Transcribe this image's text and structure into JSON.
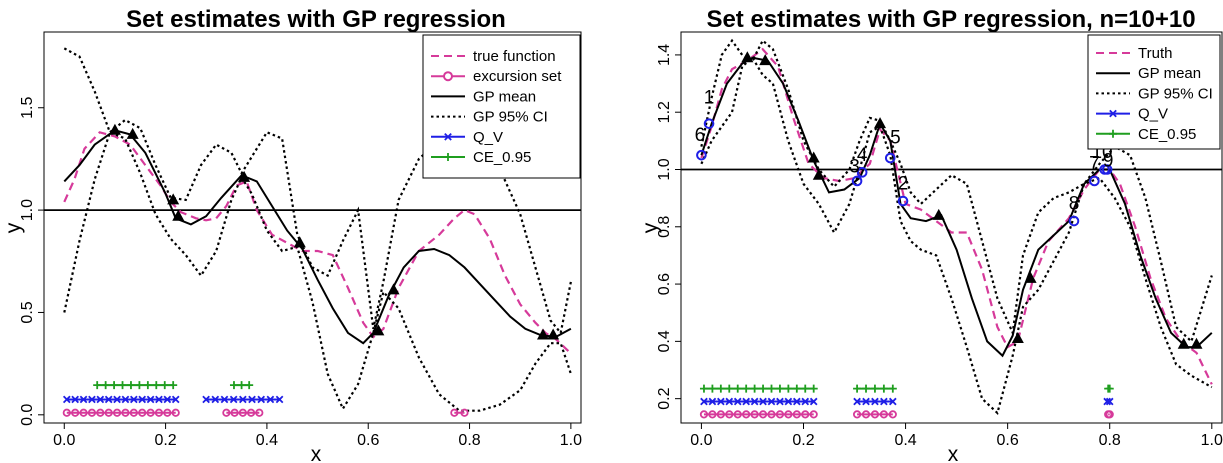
{
  "colors": {
    "truth": "#d63a9a",
    "gp": "#000000",
    "qv": "#1f1fe6",
    "ce": "#1f9e1f",
    "points": "#000000"
  },
  "chart_data": [
    {
      "type": "line",
      "title": "Set estimates with GP regression",
      "xlabel": "x",
      "ylabel": "y",
      "xlim": [
        -0.04,
        1.02
      ],
      "ylim": [
        -0.04,
        1.87
      ],
      "xticks": [
        0.0,
        0.2,
        0.4,
        0.6,
        0.8,
        1.0
      ],
      "xtick_labels": [
        "0.0",
        "0.2",
        "0.4",
        "0.6",
        "0.8",
        "1.0"
      ],
      "yticks": [
        0.0,
        0.5,
        1.0,
        1.5
      ],
      "ytick_labels": [
        "0.0",
        "0.5",
        "1.0",
        "1.5"
      ],
      "threshold": 1.0,
      "legend_position": "top-right",
      "legend": [
        {
          "label": "true function",
          "key": "truth",
          "style": "dash"
        },
        {
          "label": "excursion set",
          "key": "truth",
          "style": "circle-line"
        },
        {
          "label": "GP mean",
          "key": "gp",
          "style": "solid"
        },
        {
          "label": "GP 95% CI",
          "key": "gp",
          "style": "dot"
        },
        {
          "label": "Q_V",
          "key": "qv",
          "style": "x-line"
        },
        {
          "label": "CE_0.95",
          "key": "ce",
          "style": "plus-line"
        }
      ],
      "series": [
        {
          "key": "truth_curve",
          "x": [
            0,
            0.02,
            0.04,
            0.07,
            0.1,
            0.13,
            0.16,
            0.19,
            0.21,
            0.23,
            0.26,
            0.28,
            0.3,
            0.32,
            0.34,
            0.36,
            0.38,
            0.41,
            0.44,
            0.47,
            0.5,
            0.53,
            0.56,
            0.59,
            0.61,
            0.63,
            0.66,
            0.7,
            0.74,
            0.77,
            0.79,
            0.81,
            0.84,
            0.87,
            0.9,
            0.93,
            0.95,
            0.97,
            1.0
          ],
          "y": [
            1.04,
            1.15,
            1.3,
            1.38,
            1.36,
            1.32,
            1.22,
            1.12,
            1.04,
            0.99,
            0.96,
            0.95,
            0.96,
            1.02,
            1.12,
            1.14,
            1.0,
            0.88,
            0.84,
            0.8,
            0.8,
            0.78,
            0.62,
            0.45,
            0.38,
            0.42,
            0.62,
            0.8,
            0.88,
            0.96,
            1.0,
            0.98,
            0.86,
            0.68,
            0.54,
            0.45,
            0.4,
            0.37,
            0.3
          ]
        },
        {
          "key": "gp_mean",
          "x": [
            0,
            0.03,
            0.06,
            0.1,
            0.13,
            0.16,
            0.2,
            0.22,
            0.25,
            0.28,
            0.31,
            0.35,
            0.38,
            0.41,
            0.44,
            0.47,
            0.5,
            0.53,
            0.56,
            0.59,
            0.61,
            0.64,
            0.67,
            0.7,
            0.73,
            0.76,
            0.79,
            0.82,
            0.85,
            0.88,
            0.91,
            0.94,
            0.97,
            1.0
          ],
          "y": [
            1.14,
            1.22,
            1.32,
            1.39,
            1.37,
            1.28,
            1.08,
            0.96,
            0.93,
            0.97,
            1.06,
            1.17,
            1.14,
            1.02,
            0.9,
            0.81,
            0.66,
            0.52,
            0.4,
            0.35,
            0.4,
            0.58,
            0.72,
            0.8,
            0.81,
            0.78,
            0.72,
            0.64,
            0.56,
            0.48,
            0.42,
            0.39,
            0.38,
            0.42
          ]
        },
        {
          "key": "ci_upper",
          "x": [
            0,
            0.03,
            0.06,
            0.09,
            0.12,
            0.15,
            0.18,
            0.21,
            0.24,
            0.27,
            0.3,
            0.33,
            0.35,
            0.37,
            0.4,
            0.43,
            0.46,
            0.49,
            0.52,
            0.55,
            0.58,
            0.61,
            0.63,
            0.66,
            0.7,
            0.74,
            0.78,
            0.82,
            0.86,
            0.9,
            0.93,
            0.96,
            0.98,
            1.0
          ],
          "y": [
            1.79,
            1.75,
            1.58,
            1.38,
            1.44,
            1.4,
            1.22,
            1.06,
            1.05,
            1.22,
            1.32,
            1.28,
            1.18,
            1.26,
            1.38,
            1.35,
            0.88,
            0.72,
            0.68,
            0.85,
            1.0,
            0.42,
            0.65,
            1.05,
            1.25,
            1.34,
            1.36,
            1.33,
            1.2,
            0.98,
            0.72,
            0.46,
            0.4,
            0.65
          ]
        },
        {
          "key": "ci_lower",
          "x": [
            0,
            0.03,
            0.06,
            0.09,
            0.12,
            0.15,
            0.18,
            0.21,
            0.24,
            0.27,
            0.3,
            0.33,
            0.35,
            0.37,
            0.4,
            0.43,
            0.46,
            0.49,
            0.52,
            0.55,
            0.58,
            0.61,
            0.63,
            0.66,
            0.7,
            0.74,
            0.78,
            0.82,
            0.86,
            0.9,
            0.93,
            0.96,
            0.98,
            1.0
          ],
          "y": [
            0.5,
            0.85,
            1.15,
            1.38,
            1.35,
            1.18,
            0.98,
            0.86,
            0.78,
            0.68,
            0.8,
            1.05,
            1.16,
            1.08,
            0.9,
            0.8,
            0.82,
            0.55,
            0.2,
            0.03,
            0.15,
            0.4,
            0.6,
            0.52,
            0.28,
            0.1,
            0.02,
            0.02,
            0.05,
            0.12,
            0.25,
            0.35,
            0.35,
            0.2
          ]
        }
      ],
      "design_points": {
        "x": [
          0.1,
          0.135,
          0.215,
          0.225,
          0.355,
          0.465,
          0.62,
          0.65,
          0.945,
          0.965
        ],
        "y": [
          1.39,
          1.37,
          1.05,
          0.97,
          1.16,
          0.84,
          0.41,
          0.61,
          0.39,
          0.39
        ]
      },
      "sets": [
        {
          "key": "ce",
          "y": 0.145,
          "marker": "plus",
          "intervals": [
            [
              0.065,
              0.215
            ],
            [
              0.335,
              0.365
            ]
          ]
        },
        {
          "key": "qv",
          "y": 0.075,
          "marker": "x",
          "intervals": [
            [
              0.005,
              0.22
            ],
            [
              0.28,
              0.425
            ]
          ]
        },
        {
          "key": "truth",
          "y": 0.01,
          "marker": "circle",
          "intervals": [
            [
              0.005,
              0.22
            ],
            [
              0.32,
              0.385
            ],
            [
              0.77,
              0.79
            ]
          ]
        }
      ],
      "point_labels": []
    },
    {
      "type": "line",
      "title": "Set estimates with GP regression, n=10+10",
      "xlabel": "x",
      "ylabel": "y",
      "xlim": [
        -0.04,
        1.02
      ],
      "ylim": [
        0.115,
        1.48
      ],
      "xticks": [
        0.0,
        0.2,
        0.4,
        0.6,
        0.8,
        1.0
      ],
      "xtick_labels": [
        "0.0",
        "0.2",
        "0.4",
        "0.6",
        "0.8",
        "1.0"
      ],
      "yticks": [
        0.2,
        0.4,
        0.6,
        0.8,
        1.0,
        1.2,
        1.4
      ],
      "ytick_labels": [
        "0.2",
        "0.4",
        "0.6",
        "0.8",
        "1.0",
        "1.2",
        "1.4"
      ],
      "threshold": 1.0,
      "legend_position": "top-right",
      "legend": [
        {
          "label": "Truth",
          "key": "truth",
          "style": "dash"
        },
        {
          "label": "GP mean",
          "key": "gp",
          "style": "solid"
        },
        {
          "label": "GP 95% CI",
          "key": "gp",
          "style": "dot"
        },
        {
          "label": "Q_V",
          "key": "qv",
          "style": "x-line"
        },
        {
          "label": "CE_0.95",
          "key": "ce",
          "style": "plus-line"
        }
      ],
      "series": [
        {
          "key": "truth_curve",
          "x": [
            0,
            0.02,
            0.04,
            0.06,
            0.09,
            0.12,
            0.15,
            0.18,
            0.21,
            0.24,
            0.27,
            0.3,
            0.33,
            0.35,
            0.37,
            0.4,
            0.43,
            0.46,
            0.49,
            0.52,
            0.55,
            0.58,
            0.6,
            0.62,
            0.65,
            0.68,
            0.72,
            0.75,
            0.78,
            0.8,
            0.82,
            0.85,
            0.88,
            0.91,
            0.94,
            0.97,
            1.0
          ],
          "y": [
            1.04,
            1.15,
            1.28,
            1.35,
            1.38,
            1.42,
            1.36,
            1.18,
            1.02,
            0.97,
            0.96,
            0.97,
            1.02,
            1.14,
            1.1,
            0.88,
            0.86,
            0.82,
            0.78,
            0.78,
            0.65,
            0.45,
            0.38,
            0.4,
            0.62,
            0.75,
            0.83,
            0.93,
            1.0,
            1.0,
            0.95,
            0.8,
            0.62,
            0.48,
            0.4,
            0.36,
            0.25
          ]
        },
        {
          "key": "gp_mean",
          "x": [
            0,
            0.02,
            0.05,
            0.08,
            0.1,
            0.13,
            0.16,
            0.19,
            0.22,
            0.25,
            0.28,
            0.31,
            0.33,
            0.35,
            0.37,
            0.39,
            0.41,
            0.44,
            0.47,
            0.5,
            0.53,
            0.56,
            0.59,
            0.61,
            0.63,
            0.66,
            0.69,
            0.72,
            0.75,
            0.78,
            0.8,
            0.83,
            0.86,
            0.89,
            0.92,
            0.95,
            0.97,
            1.0
          ],
          "y": [
            1.05,
            1.16,
            1.3,
            1.37,
            1.39,
            1.38,
            1.3,
            1.17,
            1.03,
            0.92,
            0.93,
            0.97,
            1.05,
            1.16,
            1.1,
            0.88,
            0.83,
            0.82,
            0.84,
            0.72,
            0.55,
            0.4,
            0.35,
            0.42,
            0.58,
            0.72,
            0.77,
            0.82,
            0.95,
            1.0,
            1.0,
            0.88,
            0.7,
            0.55,
            0.43,
            0.38,
            0.38,
            0.43
          ]
        },
        {
          "key": "ci_upper",
          "x": [
            0,
            0.02,
            0.04,
            0.06,
            0.08,
            0.1,
            0.12,
            0.14,
            0.17,
            0.2,
            0.23,
            0.26,
            0.29,
            0.31,
            0.33,
            0.35,
            0.37,
            0.39,
            0.41,
            0.43,
            0.46,
            0.49,
            0.52,
            0.55,
            0.58,
            0.61,
            0.63,
            0.66,
            0.69,
            0.72,
            0.75,
            0.78,
            0.81,
            0.84,
            0.87,
            0.9,
            0.93,
            0.96,
            1.0
          ],
          "y": [
            1.08,
            1.25,
            1.4,
            1.45,
            1.4,
            1.38,
            1.45,
            1.42,
            1.28,
            1.1,
            1.0,
            0.94,
            1.0,
            1.1,
            1.18,
            1.17,
            1.1,
            1.02,
            0.92,
            0.88,
            0.93,
            0.98,
            0.95,
            0.75,
            0.55,
            0.43,
            0.7,
            0.85,
            0.9,
            0.92,
            0.95,
            1.02,
            1.08,
            1.05,
            0.9,
            0.68,
            0.45,
            0.4,
            0.63
          ]
        },
        {
          "key": "ci_lower",
          "x": [
            0,
            0.02,
            0.04,
            0.06,
            0.08,
            0.1,
            0.12,
            0.14,
            0.17,
            0.2,
            0.23,
            0.26,
            0.29,
            0.31,
            0.33,
            0.35,
            0.37,
            0.39,
            0.41,
            0.43,
            0.46,
            0.49,
            0.52,
            0.55,
            0.58,
            0.61,
            0.63,
            0.66,
            0.69,
            0.72,
            0.75,
            0.78,
            0.81,
            0.84,
            0.87,
            0.9,
            0.93,
            0.96,
            1.0
          ],
          "y": [
            1.02,
            1.1,
            1.15,
            1.2,
            1.36,
            1.39,
            1.33,
            1.3,
            1.1,
            0.95,
            0.88,
            0.78,
            0.88,
            1.0,
            1.13,
            1.15,
            1.05,
            0.82,
            0.75,
            0.72,
            0.7,
            0.55,
            0.38,
            0.2,
            0.15,
            0.35,
            0.52,
            0.58,
            0.68,
            0.78,
            0.95,
            0.97,
            0.9,
            0.8,
            0.62,
            0.45,
            0.32,
            0.28,
            0.24
          ]
        }
      ],
      "design_points": {
        "x": [
          0.09,
          0.125,
          0.22,
          0.23,
          0.35,
          0.465,
          0.62,
          0.645,
          0.945,
          0.97
        ],
        "y": [
          1.39,
          1.38,
          1.04,
          0.98,
          1.16,
          0.84,
          0.41,
          0.62,
          0.39,
          0.39
        ]
      },
      "new_points": {
        "x": [
          0.0,
          0.015,
          0.305,
          0.315,
          0.37,
          0.395,
          0.73,
          0.77,
          0.79,
          0.795
        ],
        "y": [
          1.05,
          1.16,
          0.96,
          0.99,
          1.04,
          0.89,
          0.82,
          0.96,
          1.0,
          1.0
        ]
      },
      "point_labels": [
        {
          "text": "6",
          "x": -0.003,
          "y": 1.1
        },
        {
          "text": "1",
          "x": 0.015,
          "y": 1.23
        },
        {
          "text": "3",
          "x": 0.3,
          "y": 0.99
        },
        {
          "text": "4",
          "x": 0.315,
          "y": 1.03
        },
        {
          "text": "5",
          "x": 0.38,
          "y": 1.09
        },
        {
          "text": "2",
          "x": 0.395,
          "y": 0.93
        },
        {
          "text": "8",
          "x": 0.73,
          "y": 0.86
        },
        {
          "text": "7",
          "x": 0.77,
          "y": 1.0
        },
        {
          "text": "9",
          "x": 0.797,
          "y": 1.01
        },
        {
          "text": "10",
          "x": 0.785,
          "y": 1.04
        }
      ],
      "sets": [
        {
          "key": "ce",
          "y": 0.235,
          "marker": "plus",
          "intervals": [
            [
              0.005,
              0.22
            ],
            [
              0.305,
              0.375
            ],
            [
              0.797,
              0.8
            ]
          ]
        },
        {
          "key": "qv",
          "y": 0.19,
          "marker": "x",
          "intervals": [
            [
              0.005,
              0.22
            ],
            [
              0.305,
              0.375
            ],
            [
              0.795,
              0.8
            ]
          ]
        },
        {
          "key": "truth",
          "y": 0.145,
          "marker": "circle",
          "intervals": [
            [
              0.005,
              0.22
            ],
            [
              0.305,
              0.375
            ],
            [
              0.797,
              0.8
            ]
          ]
        }
      ]
    }
  ]
}
